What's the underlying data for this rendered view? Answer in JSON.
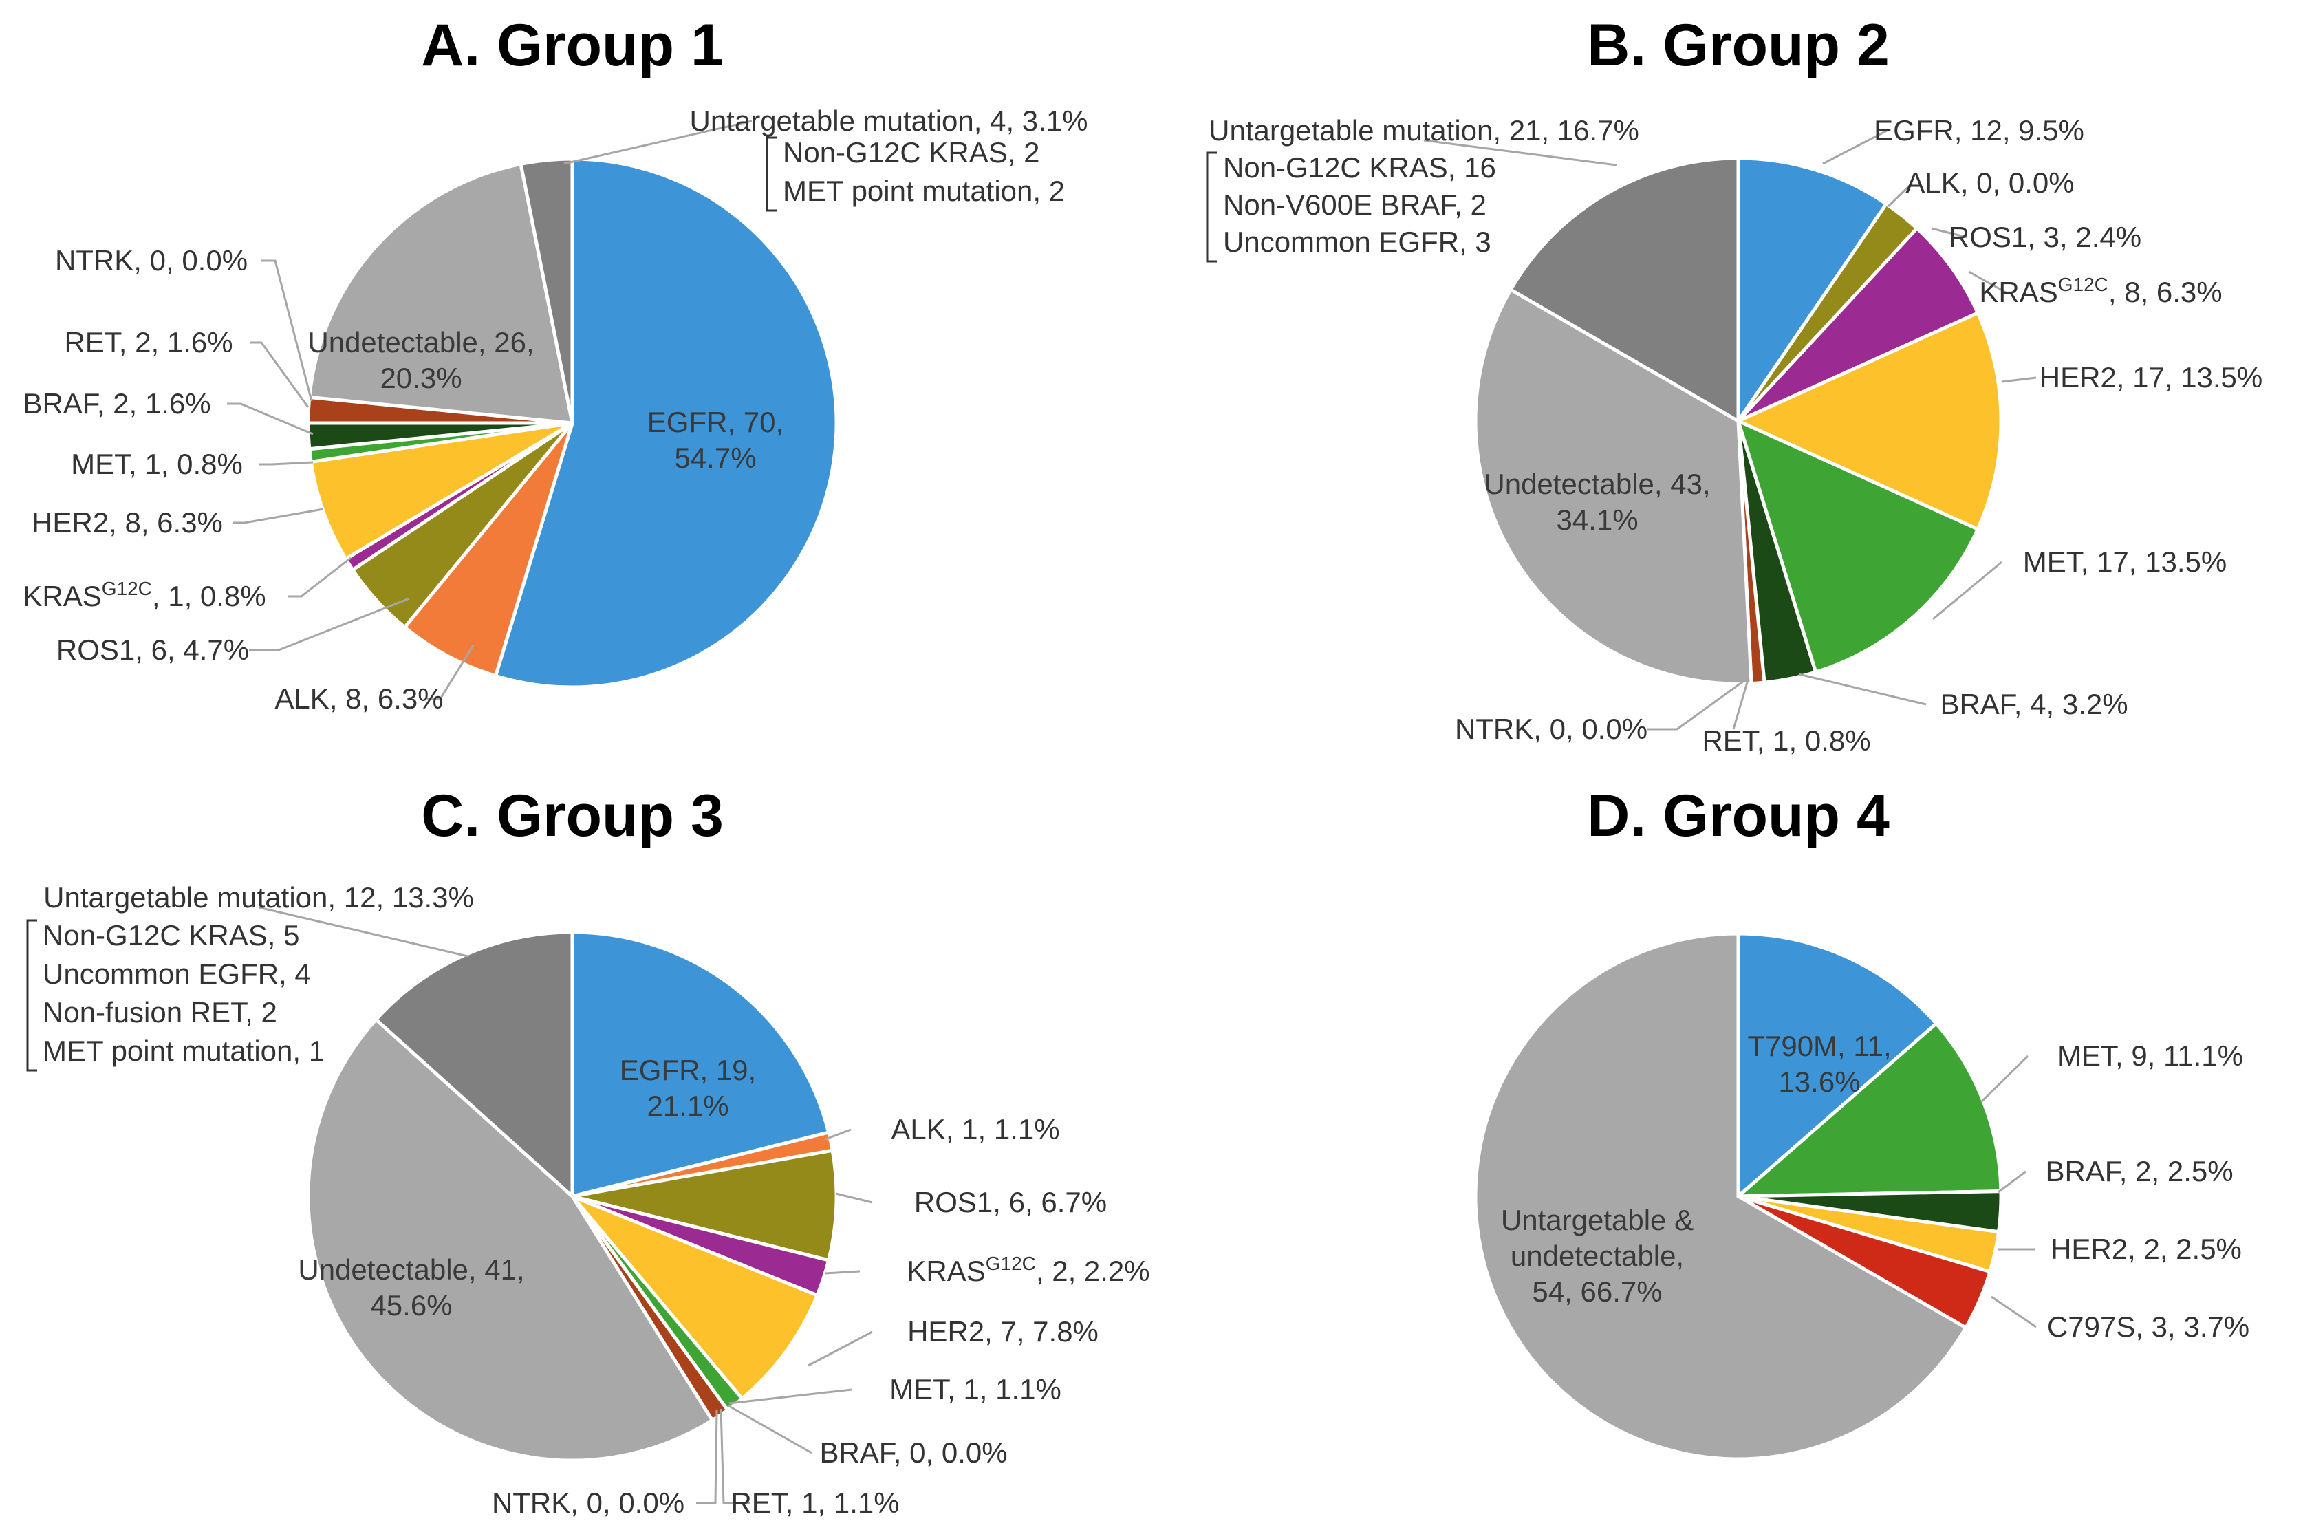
{
  "chart_data": [
    {
      "type": "pie",
      "title": "A. Group 1",
      "slices": [
        {
          "name": "EGFR",
          "count": 70,
          "percent": "54.7%",
          "color": "#3d95d8"
        },
        {
          "name": "ALK",
          "count": 8,
          "percent": "6.3%",
          "color": "#f27b3a"
        },
        {
          "name": "ROS1",
          "count": 6,
          "percent": "4.7%",
          "color": "#948a1a"
        },
        {
          "name": "KRAS",
          "sup": "G12C",
          "count": 1,
          "percent": "0.8%",
          "color": "#9b2a93"
        },
        {
          "name": "HER2",
          "count": 8,
          "percent": "6.3%",
          "color": "#fdc12c"
        },
        {
          "name": "MET",
          "count": 1,
          "percent": "0.8%",
          "color": "#3ea535"
        },
        {
          "name": "BRAF",
          "count": 2,
          "percent": "1.6%",
          "color": "#1b4a16"
        },
        {
          "name": "RET",
          "count": 2,
          "percent": "1.6%",
          "color": "#a9421b"
        },
        {
          "name": "NTRK",
          "count": 0,
          "percent": "0.0%",
          "color": "#c0392b"
        },
        {
          "name": "Undetectable",
          "count": 26,
          "percent": "20.3%",
          "color": "#a8a8a8"
        },
        {
          "name": "Untargetable mutation",
          "count": 4,
          "percent": "3.1%",
          "color": "#808080"
        }
      ],
      "breakdown": [
        "Non-G12C KRAS, 2",
        "MET point mutation, 2"
      ]
    },
    {
      "type": "pie",
      "title": "B. Group 2",
      "slices": [
        {
          "name": "EGFR",
          "count": 12,
          "percent": "9.5%",
          "color": "#3d95d8"
        },
        {
          "name": "ALK",
          "count": 0,
          "percent": "0.0%",
          "color": "#f27b3a"
        },
        {
          "name": "ROS1",
          "count": 3,
          "percent": "2.4%",
          "color": "#948a1a"
        },
        {
          "name": "KRAS",
          "sup": "G12C",
          "count": 8,
          "percent": "6.3%",
          "color": "#9b2a93"
        },
        {
          "name": "HER2",
          "count": 17,
          "percent": "13.5%",
          "color": "#fdc12c"
        },
        {
          "name": "MET",
          "count": 17,
          "percent": "13.5%",
          "color": "#3ea535"
        },
        {
          "name": "BRAF",
          "count": 4,
          "percent": "3.2%",
          "color": "#1b4a16"
        },
        {
          "name": "RET",
          "count": 1,
          "percent": "0.8%",
          "color": "#a9421b"
        },
        {
          "name": "NTRK",
          "count": 0,
          "percent": "0.0%",
          "color": "#c0392b"
        },
        {
          "name": "Undetectable",
          "count": 43,
          "percent": "34.1%",
          "color": "#a8a8a8"
        },
        {
          "name": "Untargetable mutation",
          "count": 21,
          "percent": "16.7%",
          "color": "#808080"
        }
      ],
      "breakdown": [
        "Non-G12C KRAS, 16",
        "Non-V600E BRAF, 2",
        "Uncommon EGFR, 3"
      ]
    },
    {
      "type": "pie",
      "title": "C. Group 3",
      "slices": [
        {
          "name": "EGFR",
          "count": 19,
          "percent": "21.1%",
          "color": "#3d95d8"
        },
        {
          "name": "ALK",
          "count": 1,
          "percent": "1.1%",
          "color": "#f27b3a"
        },
        {
          "name": "ROS1",
          "count": 6,
          "percent": "6.7%",
          "color": "#948a1a"
        },
        {
          "name": "KRAS",
          "sup": "G12C",
          "count": 2,
          "percent": "2.2%",
          "color": "#9b2a93"
        },
        {
          "name": "HER2",
          "count": 7,
          "percent": "7.8%",
          "color": "#fdc12c"
        },
        {
          "name": "MET",
          "count": 1,
          "percent": "1.1%",
          "color": "#3ea535"
        },
        {
          "name": "BRAF",
          "count": 0,
          "percent": "0.0%",
          "color": "#1b4a16"
        },
        {
          "name": "RET",
          "count": 1,
          "percent": "1.1%",
          "color": "#a9421b"
        },
        {
          "name": "NTRK",
          "count": 0,
          "percent": "0.0%",
          "color": "#c0392b"
        },
        {
          "name": "Undetectable",
          "count": 41,
          "percent": "45.6%",
          "color": "#a8a8a8"
        },
        {
          "name": "Untargetable mutation",
          "count": 12,
          "percent": "13.3%",
          "color": "#808080"
        }
      ],
      "breakdown": [
        "Non-G12C KRAS, 5",
        "Uncommon EGFR, 4",
        "Non-fusion RET, 2",
        "MET point mutation, 1"
      ]
    },
    {
      "type": "pie",
      "title": "D. Group 4",
      "slices": [
        {
          "name": "T790M",
          "count": 11,
          "percent": "13.6%",
          "color": "#3d95d8"
        },
        {
          "name": "MET",
          "count": 9,
          "percent": "11.1%",
          "color": "#3ea535"
        },
        {
          "name": "BRAF",
          "count": 2,
          "percent": "2.5%",
          "color": "#1b4a16"
        },
        {
          "name": "HER2",
          "count": 2,
          "percent": "2.5%",
          "color": "#fdc12c"
        },
        {
          "name": "C797S",
          "count": 3,
          "percent": "3.7%",
          "color": "#cf2a17"
        },
        {
          "name": "Untargetable & undetectable",
          "count": 54,
          "percent": "66.7%",
          "color": "#a8a8a8"
        }
      ],
      "breakdown": []
    }
  ]
}
